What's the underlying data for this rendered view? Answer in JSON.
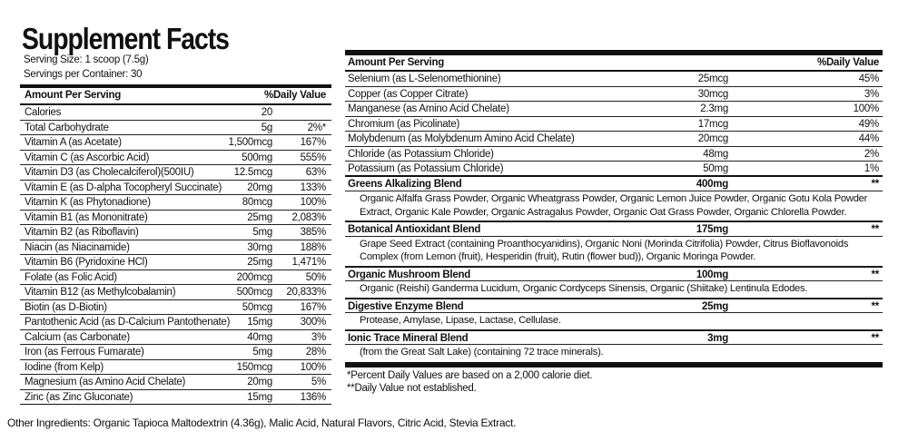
{
  "left": {
    "title": "Supplement Facts",
    "serving_size": "Serving Size: 1 scoop (7.5g)",
    "servings": "Servings per Container: 30",
    "header": {
      "amount": "Amount Per Serving",
      "dv": "%Daily Value"
    },
    "rows": [
      {
        "name": "Calories",
        "amount": "20"
      },
      {
        "name": "Total Carbohydrate",
        "amount": "5g",
        "dv": "2%*"
      },
      {
        "name": "Vitamin A (as Acetate)",
        "amount": "1,500mcg",
        "dv": "167%"
      },
      {
        "name": "Vitamin C (as Ascorbic Acid)",
        "amount": "500mg",
        "dv": "555%"
      },
      {
        "name": "Vitamin D3 (as Cholecalciferol)(500IU)",
        "amount": "12.5mcg",
        "dv": "63%"
      },
      {
        "name": "Vitamin E (as D-alpha Tocopheryl Succinate)",
        "amount": "20mg",
        "dv": "133%"
      },
      {
        "name": "Vitamin K (as Phytonadione)",
        "amount": "80mcg",
        "dv": "100%"
      },
      {
        "name": "Vitamin B1 (as Mononitrate)",
        "amount": "25mg",
        "dv": "2,083%"
      },
      {
        "name": "Vitamin B2 (as Riboflavin)",
        "amount": "5mg",
        "dv": "385%"
      },
      {
        "name": "Niacin (as Niacinamide)",
        "amount": "30mg",
        "dv": "188%"
      },
      {
        "name": "Vitamin B6 (Pyridoxine HCl)",
        "amount": "25mg",
        "dv": "1,471%"
      },
      {
        "name": "Folate (as Folic Acid)",
        "amount": "200mcg",
        "dv": "50%"
      },
      {
        "name": "Vitamin B12 (as Methylcobalamin)",
        "amount": "500mcg",
        "dv": "20,833%"
      },
      {
        "name": "Biotin (as D-Biotin)",
        "amount": "50mcg",
        "dv": "167%"
      },
      {
        "name": "Pantothenic Acid (as D-Calcium Pantothenate)",
        "amount": "15mg",
        "dv": "300%"
      },
      {
        "name": "Calcium (as Carbonate)",
        "amount": "40mg",
        "dv": "3%"
      },
      {
        "name": "Iron (as Ferrous Fumarate)",
        "amount": "5mg",
        "dv": "28%"
      },
      {
        "name": "Iodine (from Kelp)",
        "amount": "150mcg",
        "dv": "100%"
      },
      {
        "name": "Magnesium (as Amino Acid Chelate)",
        "amount": "20mg",
        "dv": "5%"
      },
      {
        "name": "Zinc (as Zinc Gluconate)",
        "amount": "15mg",
        "dv": "136%"
      }
    ]
  },
  "right": {
    "header": {
      "amount": "Amount Per Serving",
      "dv": "%Daily Value"
    },
    "rows": [
      {
        "name": "Selenium (as L-Selenomethionine)",
        "amount": "25mcg",
        "dv": "45%"
      },
      {
        "name": "Copper (as Copper Citrate)",
        "amount": "30mcg",
        "dv": "3%"
      },
      {
        "name": "Manganese (as Amino Acid Chelate)",
        "amount": "2.3mg",
        "dv": "100%"
      },
      {
        "name": "Chromium (as Picolinate)",
        "amount": "17mcg",
        "dv": "49%"
      },
      {
        "name": "Molybdenum (as Molybdenum Amino Acid Chelate)",
        "amount": "20mcg",
        "dv": "44%"
      },
      {
        "name": "Chloride (as Potassium Chloride)",
        "amount": "48mg",
        "dv": "2%"
      },
      {
        "name": "Potassium (as Potassium Chloride)",
        "amount": "50mg",
        "dv": "1%"
      }
    ],
    "blends": [
      {
        "name": "Greens Alkalizing Blend",
        "amount": "400mg",
        "dv": "**",
        "description": "Organic Alfalfa Grass Powder, Organic Wheatgrass Powder, Organic Lemon Juice Powder, Organic Gotu Kola Powder Extract, Organic Kale Powder, Organic Astragalus Powder, Organic Oat Grass Powder, Organic Chlorella Powder."
      },
      {
        "name": "Botanical Antioxidant Blend",
        "amount": "175mg",
        "dv": "**",
        "description": "Grape Seed Extract (containing Proanthocyanidins), Organic Noni (Morinda Citrifolia) Powder, Citrus Bioflavonoids Complex (from Lemon (fruit), Hesperidin (fruit), Rutin (flower bud)), Organic Moringa Powder."
      },
      {
        "name": "Organic Mushroom Blend",
        "amount": "100mg",
        "dv": "**",
        "description": "Organic (Reishi) Ganderma Lucidum, Organic Cordyceps Sinensis, Organic (Shiitake) Lentinula Edodes."
      },
      {
        "name": "Digestive Enzyme Blend",
        "amount": "25mg",
        "dv": "**",
        "description": "Protease, Amylase, Lipase, Lactase, Cellulase."
      },
      {
        "name": "Ionic Trace Mineral Blend",
        "amount": "3mg",
        "dv": "**",
        "description": "(from the Great Salt Lake) (containing 72 trace minerals)."
      }
    ],
    "footnotes": [
      "*Percent Daily Values are based on a 2,000 calorie diet.",
      "**Daily Value not established."
    ]
  },
  "other_ingredients": "Other Ingredients: Organic Tapioca Maltodextrin (4.36g), Malic Acid, Natural Flavors, Citric Acid, Stevia Extract."
}
